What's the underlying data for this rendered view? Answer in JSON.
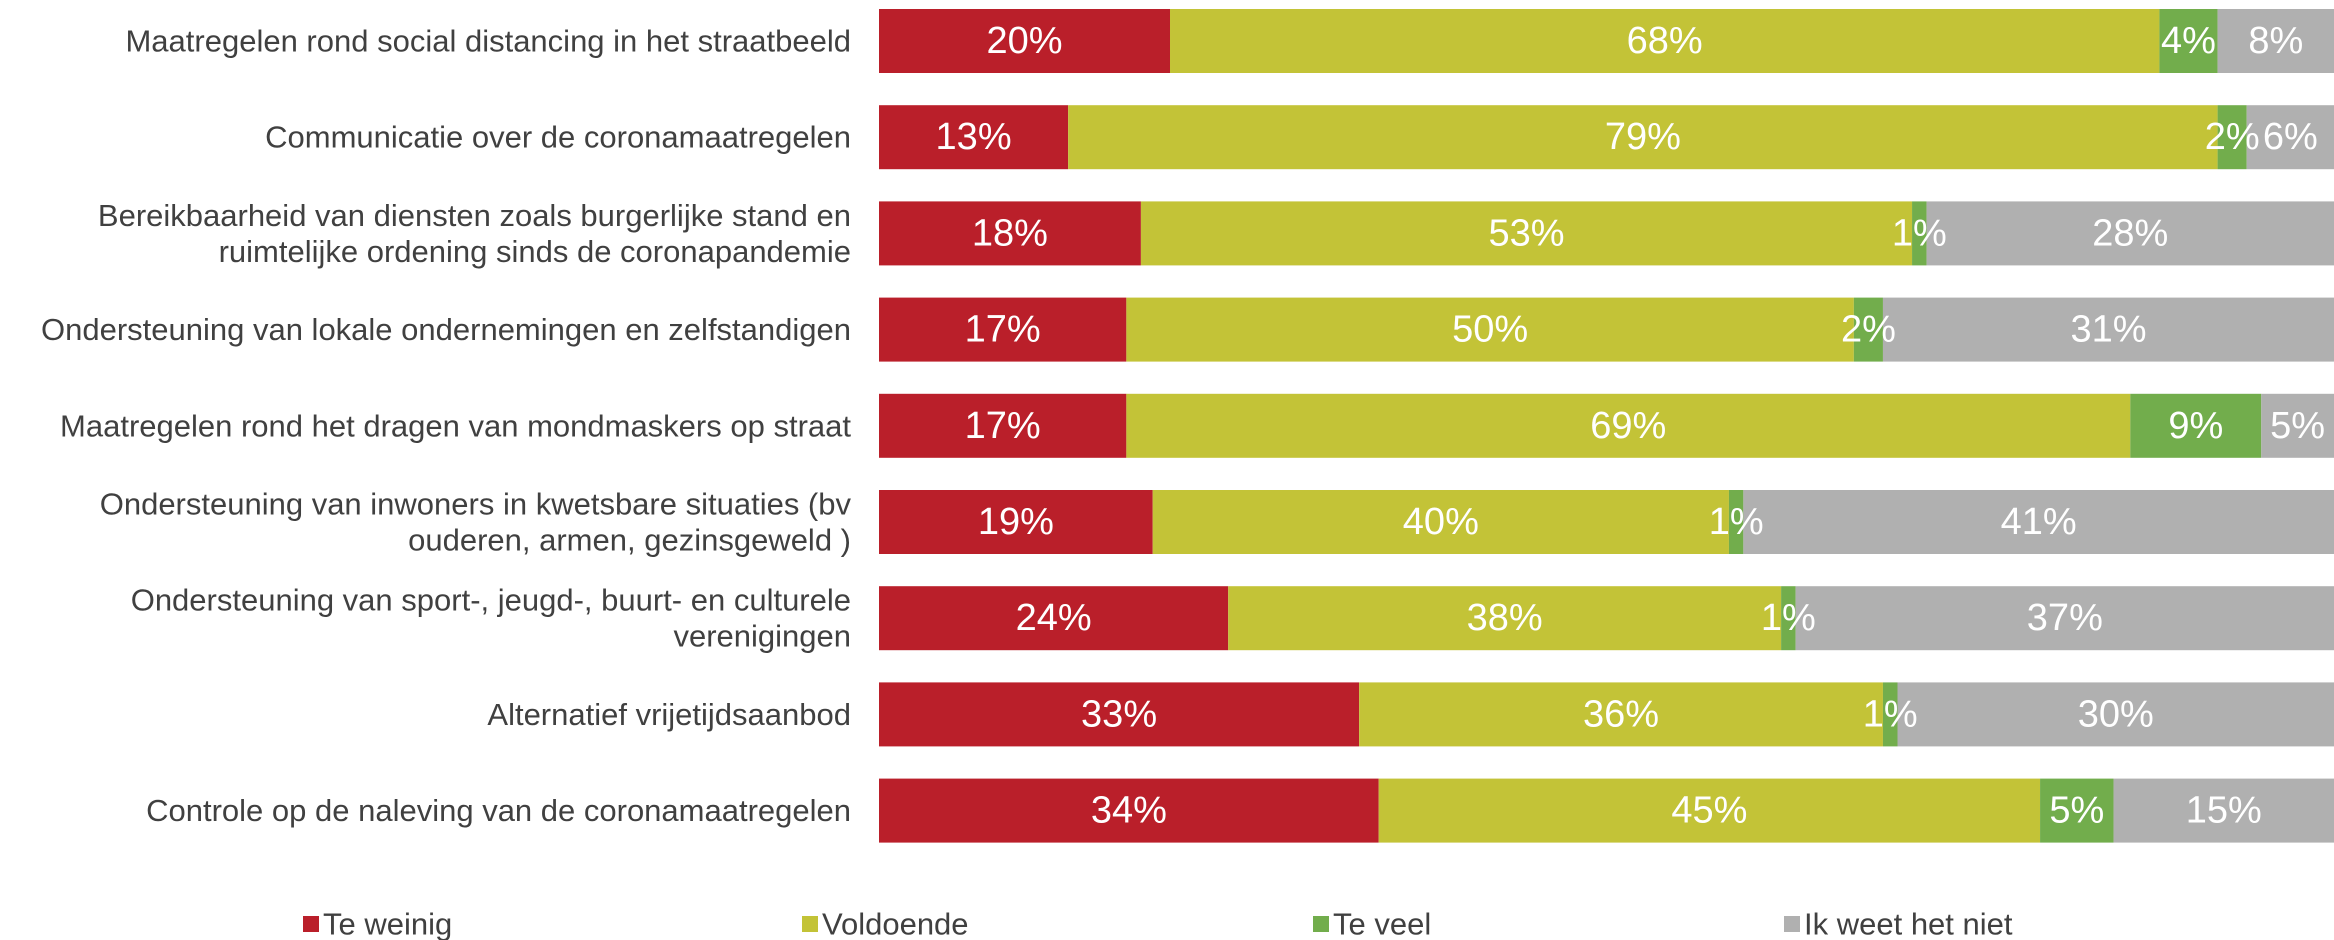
{
  "chart_data": {
    "type": "bar",
    "orientation": "horizontal",
    "stacked": true,
    "categories": [
      "Maatregelen rond social distancing in het straatbeeld",
      "Communicatie over de coronamaatregelen",
      "Bereikbaarheid van diensten zoals burgerlijke stand en ruimtelijke ordening sinds de coronapandemie",
      "Ondersteuning van lokale ondernemingen en zelfstandigen",
      "Maatregelen rond het dragen van mondmaskers op straat",
      "Ondersteuning van inwoners in kwetsbare situaties (bv ouderen, armen, gezinsgeweld    )",
      "Ondersteuning van sport-, jeugd-, buurt- en culturele verenigingen",
      "Alternatief vrijetijdsaanbod",
      "Controle op de naleving van de coronamaatregelen"
    ],
    "category_lines": [
      [
        "Maatregelen rond social distancing in het straatbeeld"
      ],
      [
        "Communicatie over de coronamaatregelen"
      ],
      [
        "Bereikbaarheid van diensten zoals burgerlijke stand en",
        "ruimtelijke ordening sinds de coronapandemie"
      ],
      [
        "Ondersteuning van lokale ondernemingen en zelfstandigen"
      ],
      [
        "Maatregelen rond het dragen van mondmaskers op straat"
      ],
      [
        "Ondersteuning van inwoners in kwetsbare situaties (bv",
        "ouderen, armen, gezinsgeweld    )"
      ],
      [
        "Ondersteuning van sport-, jeugd-, buurt- en culturele",
        "verenigingen"
      ],
      [
        "Alternatief vrijetijdsaanbod"
      ],
      [
        "Controle op de naleving van de coronamaatregelen"
      ]
    ],
    "series": [
      {
        "name": "Te weinig",
        "color": "#BA1F2A",
        "values": [
          20,
          13,
          18,
          17,
          17,
          19,
          24,
          33,
          34
        ]
      },
      {
        "name": "Voldoende",
        "color": "#C3C337",
        "values": [
          68,
          79,
          53,
          50,
          69,
          40,
          38,
          36,
          45
        ]
      },
      {
        "name": "Te veel",
        "color": "#72AD4C",
        "values": [
          4,
          2,
          1,
          2,
          9,
          1,
          1,
          1,
          5
        ]
      },
      {
        "name": "Ik weet het niet",
        "color": "#B0B0B0",
        "values": [
          8,
          6,
          28,
          31,
          5,
          41,
          37,
          30,
          15
        ]
      }
    ],
    "value_suffix": "%",
    "xlim": [
      0,
      100
    ],
    "legend_position": "bottom",
    "grid": false
  }
}
